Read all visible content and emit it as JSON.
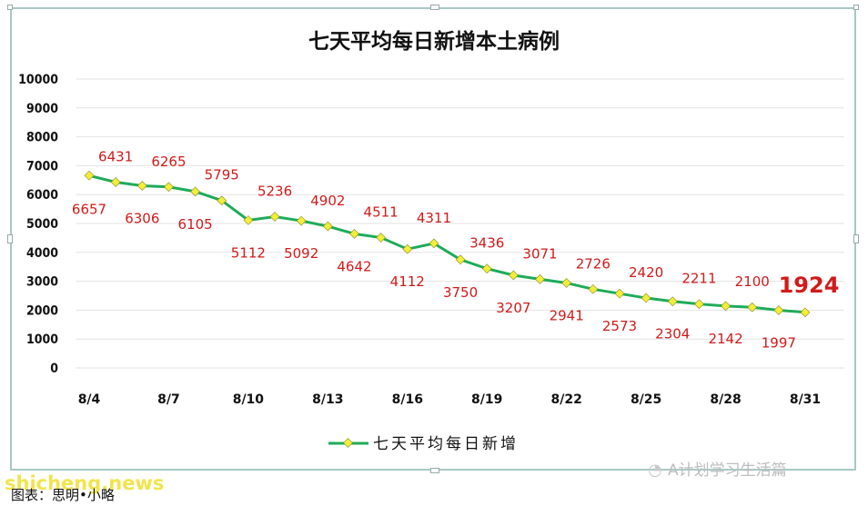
{
  "chart_data": {
    "type": "line",
    "title": "七天平均每日新增本土病例",
    "x": [
      "8/4",
      "8/5",
      "8/6",
      "8/7",
      "8/8",
      "8/9",
      "8/10",
      "8/11",
      "8/12",
      "8/13",
      "8/14",
      "8/15",
      "8/16",
      "8/17",
      "8/18",
      "8/19",
      "8/20",
      "8/21",
      "8/22",
      "8/23",
      "8/24",
      "8/25",
      "8/26",
      "8/27",
      "8/28",
      "8/29",
      "8/30",
      "8/31"
    ],
    "x_tick_labels": [
      "8/4",
      "8/7",
      "8/10",
      "8/13",
      "8/16",
      "8/19",
      "8/22",
      "8/25",
      "8/28",
      "8/31"
    ],
    "series": [
      {
        "name": "七天平均每日新增",
        "color": "#1fab5a",
        "marker_color": "#f2ee3a",
        "values": [
          6657,
          6431,
          6306,
          6265,
          6105,
          5795,
          5112,
          5236,
          5092,
          4902,
          4642,
          4511,
          4112,
          4311,
          3750,
          3436,
          3207,
          3071,
          2941,
          2726,
          2573,
          2420,
          2304,
          2211,
          2142,
          2100,
          1997,
          1924
        ]
      }
    ],
    "ylim": [
      0,
      10000
    ],
    "yticks": [
      "0",
      "1000",
      "2000",
      "3000",
      "4000",
      "5000",
      "6000",
      "7000",
      "8000",
      "9000",
      "10000"
    ],
    "grid": true,
    "legend_position": "bottom",
    "label_color": "#d11a1a"
  },
  "watermarks": {
    "brand": "A计划学习生活篇",
    "site": "shicheng.news",
    "caption": "图表：思明•小略"
  }
}
